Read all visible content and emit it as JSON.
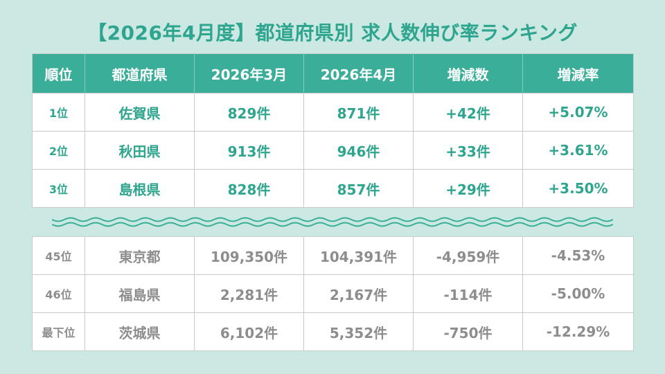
{
  "title": "【2026年4月度】都道府県別 求人数伸び率ランキング",
  "colors": {
    "accent": "#3aae98",
    "background": "#cbe8e2",
    "top_text": "#2ea58e",
    "bottom_text": "#8d8d8d"
  },
  "chart_data": {
    "type": "table",
    "columns": [
      "順位",
      "都道府県",
      "2026年3月",
      "2026年4月",
      "増減数",
      "増減率"
    ],
    "top_rows": [
      [
        "1位",
        "佐賀県",
        "829件",
        "871件",
        "+42件",
        "+5.07%"
      ],
      [
        "2位",
        "秋田県",
        "913件",
        "946件",
        "+33件",
        "+3.61%"
      ],
      [
        "3位",
        "島根県",
        "828件",
        "857件",
        "+29件",
        "+3.50%"
      ]
    ],
    "bottom_rows": [
      [
        "45位",
        "東京都",
        "109,350件",
        "104,391件",
        "-4,959件",
        "-4.53%"
      ],
      [
        "46位",
        "福島県",
        "2,281件",
        "2,167件",
        "-114件",
        "-5.00%"
      ],
      [
        "最下位",
        "茨城県",
        "6,102件",
        "5,352件",
        "-750件",
        "-12.29%"
      ]
    ]
  }
}
